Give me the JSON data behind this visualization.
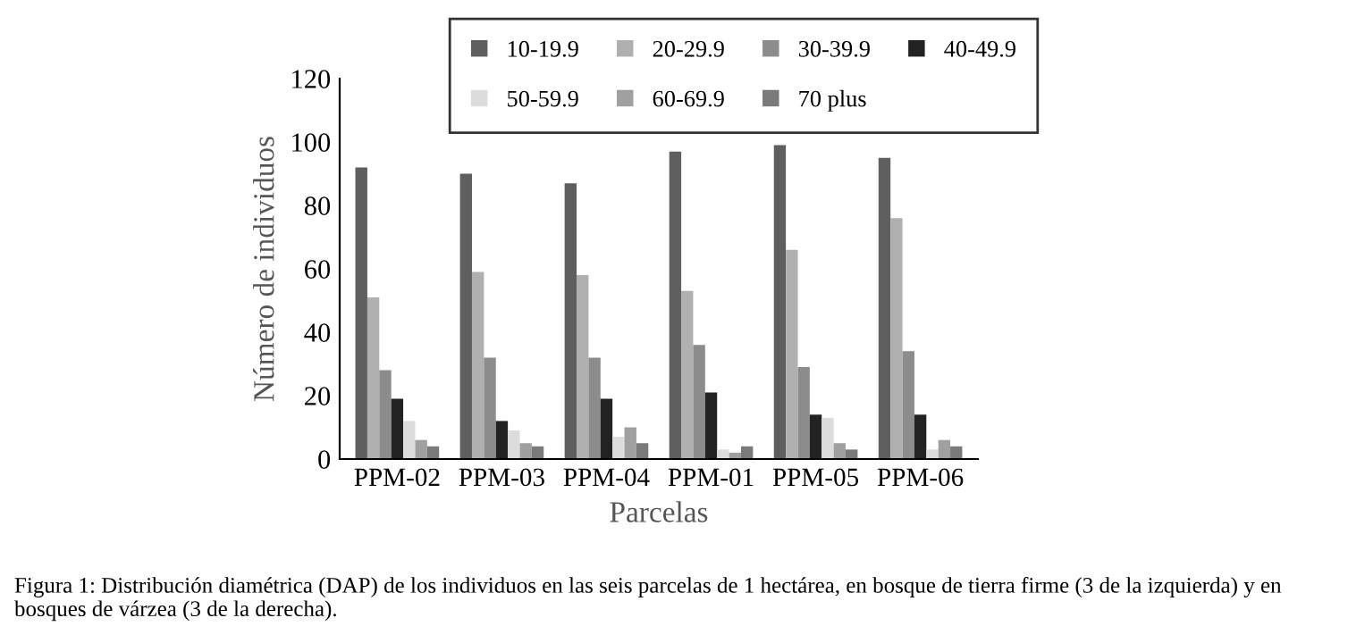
{
  "chart_data": {
    "type": "bar",
    "xlabel": "Parcelas",
    "ylabel": "Número de individuos",
    "categories": [
      "PPM-02",
      "PPM-03",
      "PPM-04",
      "PPM-01",
      "PPM-05",
      "PPM-06"
    ],
    "series": [
      {
        "name": "10-19.9",
        "color": "#5f5f5f",
        "values": [
          92,
          90,
          87,
          97,
          99,
          95
        ]
      },
      {
        "name": "20-29.9",
        "color": "#b0b0b0",
        "values": [
          51,
          59,
          58,
          53,
          66,
          76
        ]
      },
      {
        "name": "30-39.9",
        "color": "#8c8c8c",
        "values": [
          28,
          32,
          32,
          36,
          29,
          34
        ]
      },
      {
        "name": "40-49.9",
        "color": "#222222",
        "values": [
          19,
          12,
          19,
          21,
          14,
          14
        ]
      },
      {
        "name": "50-59.9",
        "color": "#dcdcdc",
        "values": [
          12,
          9,
          7,
          3,
          13,
          3
        ]
      },
      {
        "name": "60-69.9",
        "color": "#a0a0a0",
        "values": [
          6,
          5,
          10,
          2,
          5,
          6
        ]
      },
      {
        "name": "70 plus",
        "color": "#7a7a7a",
        "values": [
          4,
          4,
          5,
          4,
          3,
          4
        ]
      }
    ],
    "ylim": [
      0,
      120
    ],
    "yticks": [
      0,
      20,
      40,
      60,
      80,
      100,
      120
    ],
    "grid": false,
    "legend": "top",
    "annotations": [
      "Figura 1: Distribución diamétrica (DAP) de los individuos en las seis parcelas de 1 hectárea, en bosque de tierra firme (3 de la izquierda) y en bosques de várzea (3 de la derecha)."
    ]
  }
}
